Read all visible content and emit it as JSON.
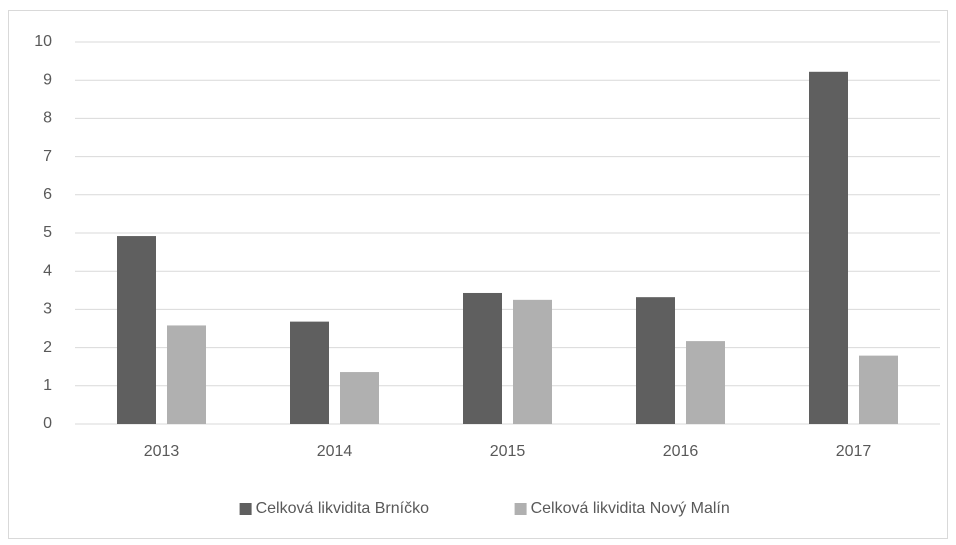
{
  "chart_data": {
    "type": "bar",
    "categories": [
      "2013",
      "2014",
      "2015",
      "2016",
      "2017"
    ],
    "series": [
      {
        "name": "Celková likvidita Brníčko",
        "color": "#5f5f5f",
        "values": [
          4.92,
          2.68,
          3.43,
          3.32,
          9.22
        ]
      },
      {
        "name": "Celková likvidita Nový Malín",
        "color": "#b0b0b0",
        "values": [
          2.58,
          1.36,
          3.25,
          2.17,
          1.79
        ]
      }
    ],
    "ylim": [
      0,
      10
    ],
    "yticks": [
      0,
      1,
      2,
      3,
      4,
      5,
      6,
      7,
      8,
      9,
      10
    ],
    "grid": true,
    "legend": "bottom"
  }
}
